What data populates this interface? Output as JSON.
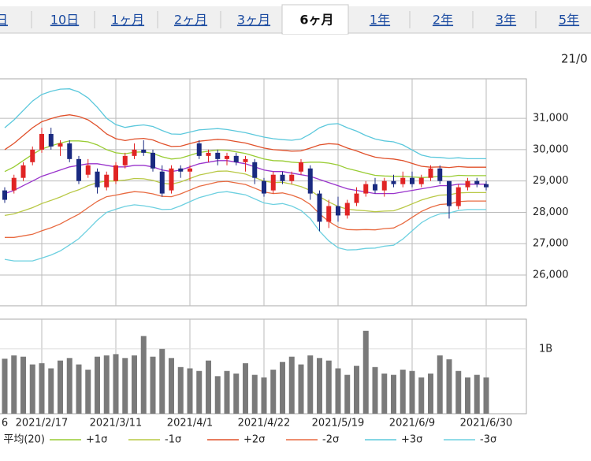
{
  "tabs": [
    "日",
    "10日",
    "1ヶ月",
    "2ヶ月",
    "3ヶ月",
    "6ヶ月",
    "1年",
    "2年",
    "3年",
    "5年"
  ],
  "active_tab": 5,
  "chart_data": [
    {
      "type": "candlestick",
      "date_label": "21/0",
      "open": [
        28700,
        28700,
        29100,
        29600,
        30000,
        30500,
        30100,
        30200,
        29700,
        29200,
        29300,
        28800,
        29000,
        29500,
        29800,
        30000,
        29900,
        29300,
        28700,
        29400,
        29300,
        30200,
        29800,
        29900,
        29700,
        29800,
        29600,
        29600,
        29000,
        28700,
        29200,
        29000,
        29300,
        29400,
        28600,
        27700,
        28200,
        27900,
        28300,
        28600,
        28900,
        28700,
        29000,
        28900,
        29100,
        28900,
        29100,
        29400,
        29000,
        28200,
        28800,
        29000,
        28900
      ],
      "high": [
        28800,
        29200,
        29600,
        30100,
        30700,
        30700,
        30300,
        30300,
        29800,
        29700,
        29400,
        29300,
        29600,
        29900,
        30200,
        30300,
        30000,
        29500,
        29500,
        29500,
        29500,
        30300,
        30000,
        30000,
        29900,
        29900,
        29800,
        29700,
        29100,
        29300,
        29300,
        29300,
        29700,
        29500,
        28700,
        28400,
        28500,
        28400,
        28800,
        29000,
        29100,
        29100,
        29200,
        29300,
        29300,
        29200,
        29500,
        29500,
        29000,
        28900,
        29100,
        29100,
        29000
      ],
      "low": [
        28300,
        28600,
        29000,
        29500,
        29900,
        30000,
        29800,
        29600,
        28900,
        29100,
        28600,
        28700,
        28900,
        29400,
        29700,
        29800,
        29300,
        28500,
        28600,
        29100,
        29000,
        29700,
        29600,
        29500,
        29500,
        29500,
        29300,
        28900,
        28500,
        28600,
        28900,
        28900,
        29200,
        28400,
        27400,
        27500,
        27700,
        27800,
        28200,
        28500,
        28600,
        28500,
        28800,
        28800,
        28800,
        28800,
        29000,
        28900,
        27800,
        28100,
        28700,
        28800,
        28700
      ],
      "close": [
        28400,
        29100,
        29500,
        30000,
        30500,
        30100,
        30200,
        29700,
        29000,
        29500,
        28800,
        29200,
        29500,
        29800,
        30000,
        29900,
        29400,
        28600,
        29400,
        29300,
        29400,
        29800,
        29900,
        29700,
        29800,
        29600,
        29700,
        29100,
        28600,
        29200,
        29000,
        29200,
        29600,
        28600,
        27700,
        28200,
        27900,
        28300,
        28600,
        28900,
        28700,
        29000,
        28900,
        29100,
        28900,
        29100,
        29400,
        29000,
        28200,
        28800,
        29000,
        28900,
        28800
      ],
      "up_color": "#e02424",
      "down_color": "#1a2a80",
      "series": [
        {
          "name": "平均(20)",
          "color": "#9933cc",
          "values": [
            28600,
            28700,
            28850,
            29000,
            29150,
            29250,
            29350,
            29450,
            29500,
            29550,
            29550,
            29500,
            29450,
            29450,
            29500,
            29500,
            29450,
            29350,
            29300,
            29350,
            29450,
            29550,
            29600,
            29650,
            29650,
            29600,
            29550,
            29450,
            29350,
            29300,
            29300,
            29250,
            29200,
            29150,
            29050,
            28950,
            28850,
            28750,
            28700,
            28650,
            28600,
            28600,
            28600,
            28650,
            28700,
            28750,
            28800,
            28850,
            28850,
            28900,
            28900,
            28900,
            28900
          ]
        },
        {
          "name": "+1σ",
          "color": "#99cc33",
          "values": [
            29300,
            29450,
            29650,
            29850,
            30020,
            30120,
            30210,
            30280,
            30280,
            30250,
            30150,
            30000,
            29900,
            29870,
            29920,
            29930,
            29880,
            29770,
            29700,
            29730,
            29820,
            29910,
            29950,
            29990,
            29980,
            29930,
            29880,
            29790,
            29700,
            29650,
            29640,
            29600,
            29580,
            29600,
            29600,
            29570,
            29510,
            29400,
            29330,
            29250,
            29180,
            29160,
            29150,
            29150,
            29130,
            29110,
            29120,
            29150,
            29140,
            29180,
            29170,
            29170,
            29170
          ]
        },
        {
          "name": "-1σ",
          "color": "#b8c844",
          "values": [
            27900,
            27950,
            28050,
            28150,
            28280,
            28380,
            28490,
            28620,
            28720,
            28850,
            28950,
            29000,
            29000,
            29030,
            29080,
            29070,
            29020,
            28930,
            28900,
            28970,
            29080,
            29190,
            29250,
            29310,
            29320,
            29270,
            29220,
            29110,
            29000,
            28950,
            28960,
            28900,
            28820,
            28700,
            28500,
            28330,
            28190,
            28100,
            28070,
            28050,
            28020,
            28040,
            28050,
            28150,
            28270,
            28390,
            28480,
            28550,
            28560,
            28620,
            28630,
            28630,
            28630
          ]
        },
        {
          "name": "+2σ",
          "color": "#e0502a",
          "values": [
            30000,
            30200,
            30450,
            30700,
            30890,
            30990,
            31070,
            31110,
            31060,
            30950,
            30750,
            30500,
            30350,
            30290,
            30340,
            30360,
            30310,
            30190,
            30100,
            30110,
            30190,
            30270,
            30300,
            30330,
            30310,
            30260,
            30210,
            30130,
            30050,
            30000,
            29980,
            29950,
            29960,
            30050,
            30150,
            30190,
            30170,
            30050,
            29960,
            29850,
            29760,
            29720,
            29700,
            29650,
            29560,
            29470,
            29440,
            29450,
            29430,
            29460,
            29440,
            29440,
            29440
          ]
        },
        {
          "name": "-2σ",
          "color": "#e86a40",
          "values": [
            27200,
            27200,
            27250,
            27300,
            27410,
            27510,
            27630,
            27790,
            27940,
            28150,
            28350,
            28500,
            28550,
            28610,
            28660,
            28640,
            28590,
            28510,
            28500,
            28590,
            28710,
            28830,
            28900,
            28970,
            28990,
            28940,
            28890,
            28770,
            28650,
            28600,
            28620,
            28550,
            28440,
            28250,
            27950,
            27710,
            27530,
            27450,
            27440,
            27450,
            27440,
            27480,
            27500,
            27650,
            27840,
            28030,
            28160,
            28250,
            28270,
            28340,
            28360,
            28360,
            28360
          ]
        },
        {
          "name": "+3σ",
          "color": "#5bc8dc",
          "values": [
            30700,
            30950,
            31250,
            31550,
            31760,
            31860,
            31930,
            31940,
            31840,
            31650,
            31350,
            31000,
            30800,
            30710,
            30760,
            30790,
            30740,
            30610,
            30500,
            30490,
            30560,
            30630,
            30650,
            30670,
            30640,
            30590,
            30540,
            30470,
            30400,
            30350,
            30320,
            30300,
            30340,
            30500,
            30700,
            30810,
            30830,
            30700,
            30590,
            30450,
            30340,
            30280,
            30250,
            30150,
            29990,
            29830,
            29760,
            29750,
            29720,
            29740,
            29710,
            29710,
            29710
          ]
        },
        {
          "name": "-3σ",
          "color": "#6dd0e0",
          "values": [
            26500,
            26450,
            26450,
            26450,
            26540,
            26640,
            26770,
            26960,
            27160,
            27450,
            27750,
            28000,
            28100,
            28190,
            28240,
            28210,
            28160,
            28090,
            28100,
            28210,
            28340,
            28470,
            28550,
            28630,
            28660,
            28610,
            28560,
            28430,
            28300,
            28250,
            28280,
            28200,
            28060,
            27800,
            27400,
            27090,
            26870,
            26800,
            26810,
            26850,
            26860,
            26920,
            26950,
            27150,
            27410,
            27670,
            27840,
            27950,
            27980,
            28060,
            28090,
            28090,
            28090
          ]
        }
      ],
      "ylim": [
        25020,
        32260
      ],
      "yticks": [
        {
          "value": 26000,
          "label": "26,000"
        },
        {
          "value": 27000,
          "label": "27,000"
        },
        {
          "value": 28000,
          "label": "28,000"
        },
        {
          "value": 29000,
          "label": "29,000"
        },
        {
          "value": 30000,
          "label": "30,000"
        },
        {
          "value": 31000,
          "label": "31,000"
        }
      ],
      "grid": true
    },
    {
      "type": "bar",
      "categories": [
        "6",
        null,
        null,
        null,
        "2021/2/17",
        null,
        null,
        null,
        null,
        null,
        null,
        null,
        "2021/3/11",
        null,
        null,
        null,
        null,
        null,
        null,
        null,
        "2021/4/1",
        null,
        null,
        null,
        null,
        null,
        null,
        null,
        "2021/4/22",
        null,
        null,
        null,
        null,
        null,
        null,
        null,
        "2021/5/19",
        null,
        null,
        null,
        null,
        null,
        null,
        null,
        "2021/6/9",
        null,
        null,
        null,
        null,
        null,
        null,
        null,
        "2021/6/30"
      ],
      "values": [
        850000000,
        900000000,
        880000000,
        760000000,
        780000000,
        700000000,
        820000000,
        860000000,
        760000000,
        680000000,
        880000000,
        900000000,
        920000000,
        860000000,
        900000000,
        1200000000,
        880000000,
        1000000000,
        860000000,
        720000000,
        700000000,
        660000000,
        820000000,
        580000000,
        660000000,
        620000000,
        780000000,
        600000000,
        560000000,
        680000000,
        800000000,
        880000000,
        760000000,
        900000000,
        860000000,
        820000000,
        700000000,
        600000000,
        740000000,
        1280000000,
        720000000,
        620000000,
        600000000,
        680000000,
        660000000,
        560000000,
        620000000,
        900000000,
        840000000,
        660000000,
        560000000,
        600000000,
        560000000
      ],
      "color": "#7a7a7a",
      "ylim": [
        0,
        1460000000
      ],
      "yticks": [
        {
          "value": 1000000000,
          "label": "1B"
        }
      ],
      "grid": true
    }
  ]
}
